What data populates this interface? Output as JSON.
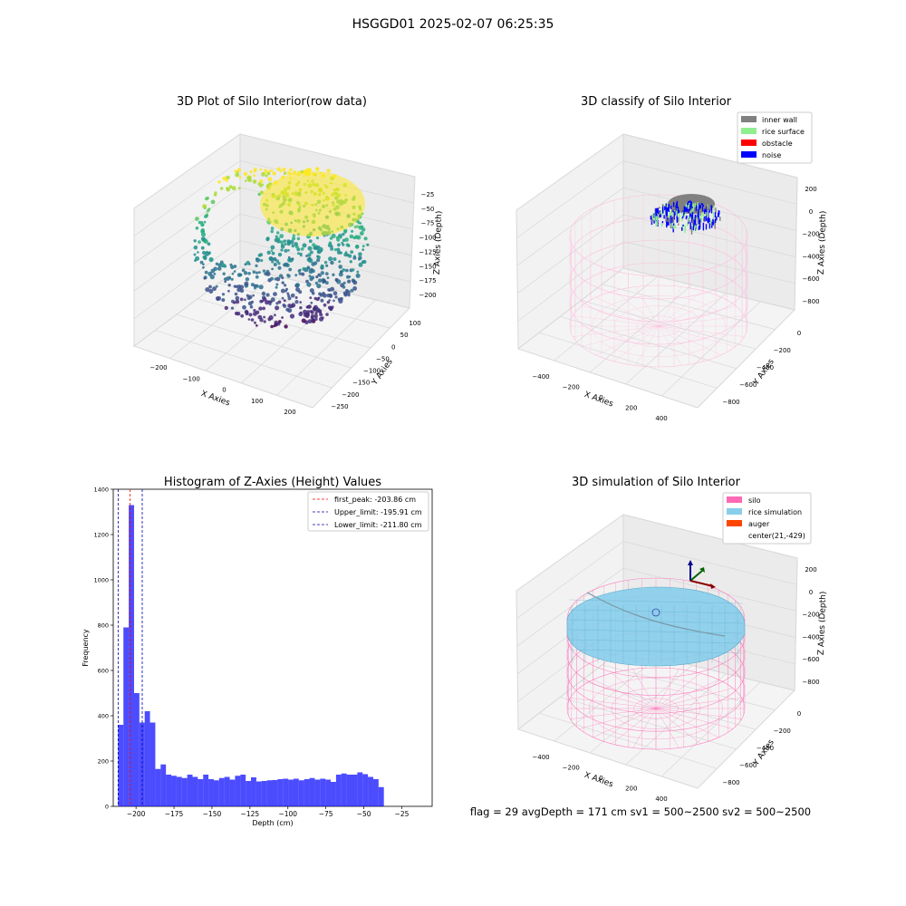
{
  "suptitle": "HSGGD01 2025-02-07 06:25:35",
  "status_line": "flag = 29  avgDepth = 171 cm  sv1 = 500~2500  sv2 = 500~2500",
  "chart_data": [
    {
      "type": "scatter",
      "subtype": "3d-point-cloud",
      "title": "3D Plot of Silo Interior(row data)",
      "xlabel": "X Axies",
      "ylabel": "Y Axies",
      "zlabel": "Z Axies (Depth)",
      "x_ticks": [
        -200,
        -100,
        0,
        100,
        200
      ],
      "y_ticks": [
        100,
        50,
        0,
        -50,
        -100,
        -150,
        -200,
        -250
      ],
      "z_ticks": [
        -25,
        -50,
        -75,
        -100,
        -125,
        -150,
        -175,
        -200
      ],
      "colormap": "viridis",
      "grid": true
    },
    {
      "type": "scatter",
      "subtype": "3d-classification",
      "title": "3D classify of Silo Interior",
      "xlabel": "X Axies",
      "ylabel": "Y Axies",
      "zlabel": "Z Axies (Depth)",
      "x_ticks": [
        -400,
        -200,
        0,
        200,
        400
      ],
      "y_ticks": [
        0,
        -200,
        -400,
        -600,
        -800
      ],
      "z_ticks": [
        200,
        0,
        -200,
        -400,
        -600,
        -800
      ],
      "legend": [
        {
          "label": "inner wall",
          "color": "#808080"
        },
        {
          "label": "rice surface",
          "color": "#90ee90"
        },
        {
          "label": "obstacle",
          "color": "#ff0000"
        },
        {
          "label": "noise",
          "color": "#0000ff"
        }
      ],
      "legend_position": "top-right",
      "silo_color": "#ff69b4",
      "grid": true
    },
    {
      "type": "bar",
      "subtype": "histogram",
      "title": "Histogram of Z-Axies (Height) Values",
      "xlabel": "Depth (cm)",
      "ylabel": "Frequency",
      "xlim": [
        -215,
        -5
      ],
      "ylim": [
        0,
        1400
      ],
      "x_ticks": [
        -200,
        -175,
        -150,
        -125,
        -100,
        -75,
        -50,
        -25
      ],
      "y_ticks": [
        0,
        200,
        400,
        600,
        800,
        1000,
        1200,
        1400
      ],
      "bin_start": -211.8,
      "bin_width": 3.5,
      "values": [
        360,
        790,
        1330,
        500,
        370,
        420,
        370,
        165,
        185,
        140,
        135,
        130,
        125,
        140,
        130,
        120,
        140,
        120,
        115,
        125,
        130,
        118,
        135,
        140,
        112,
        128,
        110,
        112,
        115,
        116,
        120,
        122,
        118,
        122,
        115,
        120,
        125,
        118,
        122,
        118,
        108,
        140,
        145,
        140,
        140,
        150,
        142,
        130,
        120,
        85
      ],
      "bar_color": "#0000ff",
      "bar_alpha": 0.7,
      "vlines": [
        {
          "label": "first_peak: -203.86 cm",
          "value": -203.86,
          "color": "#ff0000"
        },
        {
          "label": "Upper_limit: -195.91 cm",
          "value": -195.91,
          "color": "#0000aa"
        },
        {
          "label": "Lower_limit: -211.80 cm",
          "value": -211.8,
          "color": "#0000aa"
        }
      ],
      "legend_position": "top-right",
      "grid": false
    },
    {
      "type": "area",
      "subtype": "3d-surface",
      "title": "3D simulation of Silo Interior",
      "xlabel": "X Axies",
      "ylabel": "Y Axies",
      "zlabel": "Z Axies (Depth)",
      "x_ticks": [
        -400,
        -200,
        0,
        200,
        400
      ],
      "y_ticks": [
        0,
        -200,
        -400,
        -600,
        -800
      ],
      "z_ticks": [
        200,
        0,
        -200,
        -400,
        -600,
        -800
      ],
      "legend": [
        {
          "label": "silo",
          "color": "#ff69b4"
        },
        {
          "label": "rice simulation",
          "color": "#87ceeb"
        },
        {
          "label": "auger",
          "color": "#ff4500"
        },
        {
          "label": "center(21,-429)",
          "color": ""
        }
      ],
      "legend_position": "top-right",
      "grid": true
    }
  ]
}
